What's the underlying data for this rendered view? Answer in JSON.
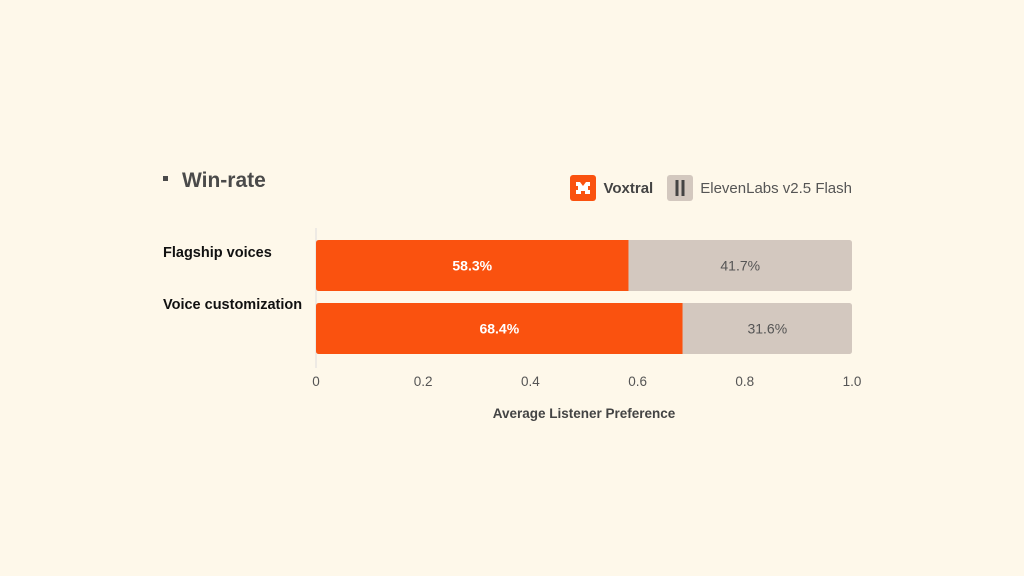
{
  "chart_data": {
    "type": "bar",
    "orientation": "horizontal",
    "stacked": true,
    "title": "Win-rate",
    "categories": [
      "Flagship voices",
      "Voice customization"
    ],
    "series": [
      {
        "name": "Voxtral",
        "values": [
          0.583,
          0.684
        ],
        "labels": [
          "58.3%",
          "68.4%"
        ],
        "color": "#fa520f"
      },
      {
        "name": "ElevenLabs v2.5 Flash",
        "values": [
          0.417,
          0.316
        ],
        "labels": [
          "41.7%",
          "31.6%"
        ],
        "color": "#d3c8bf"
      }
    ],
    "xlabel": "Average Listener Preference",
    "xlim": [
      0,
      1.0
    ],
    "xticks": [
      "0",
      "0.2",
      "0.4",
      "0.6",
      "0.8",
      "1.0"
    ],
    "legend": "top-right",
    "grid": false
  }
}
